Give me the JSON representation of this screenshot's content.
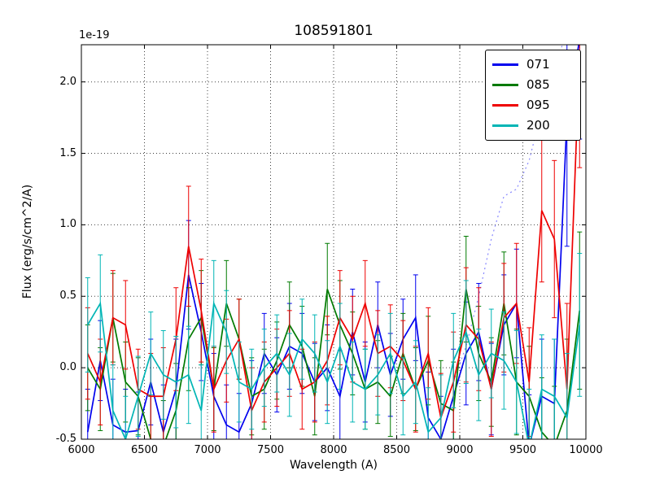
{
  "chart_data": {
    "type": "line",
    "title": "108591801",
    "offset_label": "1e-19",
    "xlabel": "Wavelength (A)",
    "ylabel": "Flux (erg/s/cm^2/A)",
    "xlim": [
      6000,
      10000
    ],
    "ylim": [
      -0.5,
      2.26
    ],
    "grid": true,
    "grid_style": "dotted",
    "legend_position": "upper right",
    "xticks": [
      6000,
      6500,
      7000,
      7500,
      8000,
      8500,
      9000,
      9500,
      10000
    ],
    "xtick_labels": [
      "6000",
      "6500",
      "7000",
      "7500",
      "8000",
      "8500",
      "9000",
      "9500",
      "10000"
    ],
    "yticks": [
      -0.5,
      0.0,
      0.5,
      1.0,
      1.5,
      2.0
    ],
    "ytick_labels": [
      "-0.5",
      "0.0",
      "0.5",
      "1.0",
      "1.5",
      "2.0"
    ],
    "x": [
      6050,
      6150,
      6250,
      6350,
      6450,
      6550,
      6650,
      6750,
      6850,
      6950,
      7050,
      7150,
      7250,
      7350,
      7450,
      7550,
      7650,
      7750,
      7850,
      7950,
      8050,
      8150,
      8250,
      8350,
      8450,
      8550,
      8650,
      8750,
      8850,
      8950,
      9050,
      9150,
      9250,
      9350,
      9450,
      9550,
      9650,
      9750,
      9850,
      9950
    ],
    "series": [
      {
        "name": "071",
        "color": "#0000ee",
        "style": "solid",
        "in_legend": true,
        "values": [
          -0.45,
          0.05,
          -0.4,
          -0.45,
          -0.44,
          -0.1,
          -0.45,
          -0.15,
          0.65,
          0.25,
          -0.2,
          -0.4,
          -0.45,
          -0.25,
          0.1,
          -0.05,
          0.15,
          0.1,
          -0.1,
          0.0,
          -0.2,
          0.25,
          -0.1,
          0.3,
          -0.05,
          0.2,
          0.35,
          -0.35,
          -0.5,
          -0.2,
          0.1,
          0.25,
          -0.15,
          0.3,
          0.45,
          -0.55,
          -0.2,
          -0.25,
          1.75,
          2.3
        ],
        "errors": [
          0.3,
          0.28,
          0.32,
          0.3,
          0.27,
          0.3,
          0.33,
          0.35,
          0.38,
          0.34,
          0.3,
          0.28,
          0.27,
          0.3,
          0.28,
          0.26,
          0.3,
          0.28,
          0.27,
          0.3,
          0.32,
          0.3,
          0.28,
          0.3,
          0.29,
          0.28,
          0.3,
          0.32,
          0.3,
          0.33,
          0.36,
          0.34,
          0.32,
          0.35,
          0.38,
          0.36,
          0.4,
          0.45,
          0.9,
          0.7
        ]
      },
      {
        "name": "085",
        "color": "#007a00",
        "style": "solid",
        "in_legend": true,
        "values": [
          0.0,
          -0.15,
          0.35,
          -0.1,
          -0.2,
          -0.5,
          -0.55,
          -0.3,
          0.2,
          0.35,
          -0.15,
          0.45,
          0.2,
          -0.2,
          -0.15,
          0.05,
          0.3,
          0.15,
          -0.2,
          0.55,
          0.3,
          0.1,
          -0.15,
          -0.1,
          -0.2,
          0.1,
          -0.15,
          0.05,
          -0.25,
          -0.3,
          0.55,
          0.1,
          -0.1,
          0.45,
          -0.1,
          -0.2,
          -0.45,
          -0.55,
          -0.3,
          0.4
        ],
        "errors": [
          0.3,
          0.29,
          0.31,
          0.28,
          0.27,
          0.3,
          0.32,
          0.33,
          0.36,
          0.33,
          0.29,
          0.3,
          0.28,
          0.27,
          0.28,
          0.27,
          0.3,
          0.28,
          0.27,
          0.32,
          0.31,
          0.29,
          0.28,
          0.29,
          0.28,
          0.28,
          0.29,
          0.31,
          0.3,
          0.34,
          0.37,
          0.33,
          0.31,
          0.36,
          0.37,
          0.35,
          0.38,
          0.42,
          0.5,
          0.55
        ]
      },
      {
        "name": "095",
        "color": "#ee0000",
        "style": "solid",
        "in_legend": true,
        "values": [
          0.1,
          -0.1,
          0.35,
          0.3,
          -0.15,
          -0.2,
          -0.2,
          0.2,
          0.85,
          0.4,
          -0.15,
          0.05,
          0.2,
          -0.3,
          -0.1,
          0.0,
          0.1,
          -0.15,
          -0.1,
          0.05,
          0.35,
          0.2,
          0.45,
          0.1,
          0.15,
          0.05,
          -0.15,
          0.1,
          -0.35,
          -0.1,
          0.3,
          0.2,
          -0.15,
          0.35,
          0.45,
          -0.1,
          1.1,
          0.9,
          -0.15,
          2.2
        ],
        "errors": [
          0.32,
          0.3,
          0.33,
          0.31,
          0.28,
          0.3,
          0.34,
          0.36,
          0.42,
          0.36,
          0.3,
          0.29,
          0.28,
          0.3,
          0.28,
          0.27,
          0.3,
          0.28,
          0.28,
          0.31,
          0.33,
          0.3,
          0.3,
          0.3,
          0.29,
          0.28,
          0.3,
          0.32,
          0.31,
          0.35,
          0.4,
          0.36,
          0.33,
          0.38,
          0.42,
          0.38,
          0.5,
          0.55,
          0.6,
          0.8
        ]
      },
      {
        "name": "200",
        "color": "#00b5b5",
        "style": "solid",
        "in_legend": true,
        "values": [
          0.3,
          0.45,
          -0.3,
          -0.5,
          -0.2,
          0.1,
          -0.05,
          -0.1,
          -0.05,
          -0.3,
          0.45,
          0.25,
          -0.1,
          -0.15,
          0.0,
          0.1,
          -0.05,
          0.2,
          0.1,
          -0.1,
          0.15,
          -0.1,
          -0.15,
          -0.05,
          0.1,
          -0.2,
          -0.1,
          -0.45,
          -0.35,
          0.05,
          0.25,
          -0.05,
          0.1,
          0.05,
          -0.1,
          -0.55,
          -0.15,
          -0.2,
          -0.35,
          0.3
        ],
        "errors": [
          0.33,
          0.34,
          0.32,
          0.3,
          0.28,
          0.29,
          0.31,
          0.32,
          0.34,
          0.32,
          0.3,
          0.29,
          0.28,
          0.28,
          0.27,
          0.27,
          0.29,
          0.28,
          0.27,
          0.29,
          0.3,
          0.28,
          0.28,
          0.28,
          0.28,
          0.27,
          0.29,
          0.31,
          0.3,
          0.33,
          0.36,
          0.32,
          0.31,
          0.34,
          0.36,
          0.4,
          0.38,
          0.4,
          0.45,
          0.5
        ]
      }
    ],
    "extra_series": [
      {
        "name": "071-dotted-model",
        "color": "#8888ff",
        "style": "dotted",
        "in_legend": false,
        "x": [
          8950,
          9050,
          9150,
          9250,
          9350,
          9450,
          9550,
          9650,
          9750,
          9850
        ],
        "values": [
          -0.1,
          0.15,
          0.5,
          0.9,
          1.2,
          1.25,
          1.45,
          1.8,
          2.1,
          2.35
        ]
      }
    ]
  }
}
